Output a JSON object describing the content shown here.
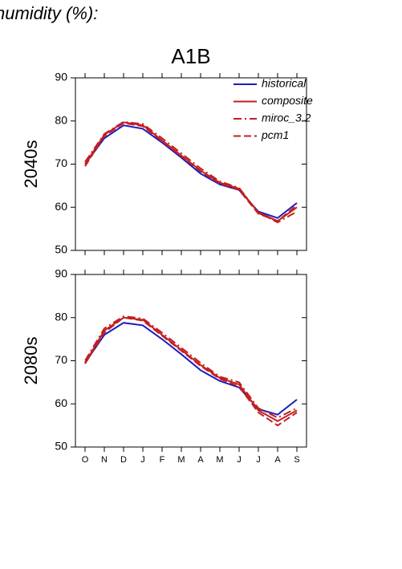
{
  "page": {
    "header": "humidity (%):",
    "title": "A1B"
  },
  "chart_data": [
    {
      "type": "line",
      "y_label": "2040s",
      "legend": "upper right",
      "categories": [
        "O",
        "N",
        "D",
        "J",
        "F",
        "M",
        "A",
        "M",
        "J",
        "J",
        "A",
        "S"
      ],
      "ylim": [
        50,
        90
      ],
      "yticks": [
        50,
        60,
        70,
        80,
        90
      ],
      "series": [
        {
          "name": "historical",
          "color": "#1c1cc0",
          "style": "solid",
          "values": [
            70,
            76,
            79,
            78.2,
            75,
            71.5,
            67.8,
            65.3,
            64,
            59,
            57.5,
            61
          ]
        },
        {
          "name": "composite",
          "color": "#c21f1f",
          "style": "solid",
          "values": [
            70,
            76.8,
            79.7,
            79,
            75.5,
            72,
            68.5,
            65.7,
            64.3,
            58.8,
            56.8,
            60
          ]
        },
        {
          "name": "miroc_3.2",
          "color": "#c21f1f",
          "style": "dashdot",
          "values": [
            70.5,
            77,
            79.8,
            79.3,
            76,
            72.5,
            69,
            66,
            64.5,
            58.7,
            56.5,
            59
          ]
        },
        {
          "name": "pcm1",
          "color": "#c21f1f",
          "style": "dashed",
          "values": [
            69.5,
            76.5,
            79.5,
            78.8,
            75.3,
            71.8,
            68.3,
            65.5,
            64,
            58.5,
            56.8,
            60.5
          ]
        }
      ]
    },
    {
      "type": "line",
      "y_label": "2080s",
      "categories": [
        "O",
        "N",
        "D",
        "J",
        "F",
        "M",
        "A",
        "M",
        "J",
        "J",
        "A",
        "S"
      ],
      "ylim": [
        50,
        90
      ],
      "yticks": [
        50,
        60,
        70,
        80,
        90
      ],
      "series": [
        {
          "name": "historical",
          "color": "#1c1cc0",
          "style": "solid",
          "values": [
            69.5,
            76,
            78.8,
            78.2,
            75,
            71.5,
            67.8,
            65.3,
            63.8,
            58.8,
            57.5,
            61
          ]
        },
        {
          "name": "composite",
          "color": "#c21f1f",
          "style": "solid",
          "values": [
            69.5,
            77,
            80,
            79.5,
            76,
            72.5,
            69,
            66,
            64.5,
            58.5,
            56,
            58.5
          ]
        },
        {
          "name": "miroc_3.2",
          "color": "#c21f1f",
          "style": "dashdot",
          "values": [
            70,
            77.5,
            80.3,
            79.8,
            76.5,
            73,
            69.5,
            66.3,
            65,
            59,
            56.8,
            59
          ]
        },
        {
          "name": "pcm1",
          "color": "#c21f1f",
          "style": "dashed",
          "values": [
            69.3,
            76.5,
            80,
            79.3,
            75.8,
            72.3,
            68.8,
            65.8,
            64,
            58,
            55,
            58
          ]
        }
      ]
    }
  ]
}
